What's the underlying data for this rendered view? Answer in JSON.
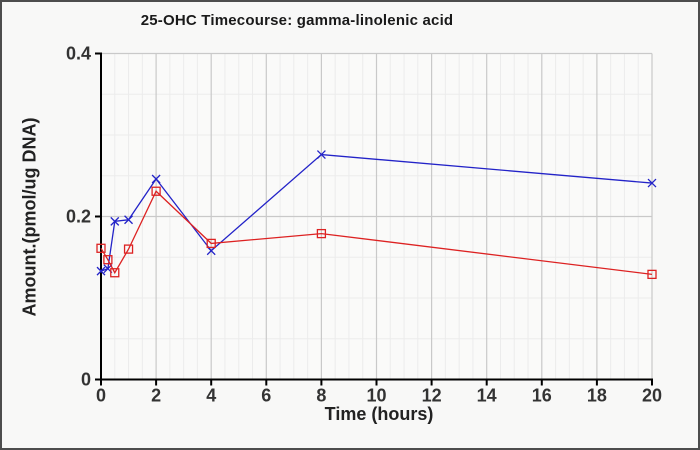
{
  "window": {
    "background": "#f8f8f7",
    "border_color": "#4d4d4d",
    "plot_background": "#fafaf9"
  },
  "chart_data": {
    "type": "line",
    "title": "25-OHC Timecourse: gamma-linolenic acid",
    "xlabel": "Time (hours)",
    "ylabel": "Amount.(pmol/ug DNA)",
    "xlim": [
      0,
      20
    ],
    "ylim": [
      0,
      0.4
    ],
    "x_major_ticks": [
      0,
      2,
      4,
      6,
      8,
      10,
      12,
      14,
      16,
      18,
      20
    ],
    "x_tick_labels": [
      "0",
      "2",
      "4",
      "6",
      "8",
      "10",
      "12",
      "14",
      "16",
      "18",
      "20"
    ],
    "y_major_ticks": [
      0,
      0.2,
      0.4
    ],
    "y_tick_labels": [
      "0",
      "0.2",
      "0.4"
    ],
    "x_minor_step": 0.5,
    "y_minor_step": 0.05,
    "grid": true,
    "legend": "none",
    "x": [
      0,
      0.25,
      0.5,
      1,
      2,
      4,
      8,
      20
    ],
    "series": [
      {
        "name": "blue-series",
        "marker": "x",
        "color": "#2323c8",
        "values": [
          0.133,
          0.136,
          0.194,
          0.196,
          0.246,
          0.158,
          0.276,
          0.241
        ]
      },
      {
        "name": "red-series",
        "marker": "open-square",
        "color": "#dd2222",
        "values": [
          0.161,
          0.147,
          0.131,
          0.16,
          0.231,
          0.167,
          0.179,
          0.129
        ]
      }
    ],
    "colors": {
      "major_grid": "#c9c9c9",
      "minor_grid": "#ececec",
      "axis": "#000000",
      "tick_label": "#333333",
      "title": "#1a1a1a"
    }
  }
}
